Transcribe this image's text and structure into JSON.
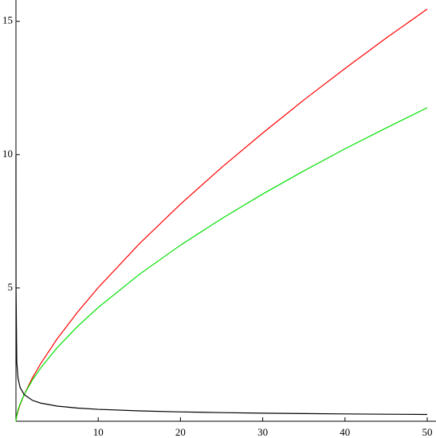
{
  "chart_data": {
    "type": "line",
    "x": [
      0,
      0.0014,
      0.01,
      0.1,
      0.25,
      0.5,
      1,
      2,
      3,
      5,
      7.5,
      10,
      15,
      20,
      25,
      30,
      35,
      40,
      45,
      50
    ],
    "series": [
      {
        "color": "#ff0000",
        "values": [
          0,
          0.01,
          0.04,
          0.2,
          0.379,
          0.616,
          1,
          1.625,
          2.158,
          3.086,
          4.097,
          5.012,
          6.657,
          8.142,
          9.518,
          10.81,
          12.05,
          13.23,
          14.37,
          15.46
        ]
      },
      {
        "color": "#00e000",
        "values": [
          0,
          0.016,
          0.055,
          0.234,
          0.418,
          0.646,
          1,
          1.548,
          1.998,
          2.756,
          3.558,
          4.266,
          5.508,
          6.604,
          7.598,
          8.523,
          9.39,
          10.22,
          11.0,
          11.76
        ]
      },
      {
        "color": "#000000",
        "values": [
          null,
          9.97,
          5.01,
          2.24,
          1.62,
          1.27,
          1,
          0.785,
          0.681,
          0.569,
          0.494,
          0.447,
          0.388,
          0.35,
          0.324,
          0.304,
          0.288,
          0.275,
          0.264,
          0.254
        ]
      }
    ],
    "xlim": [
      0,
      50
    ],
    "ylim": [
      0,
      15.8
    ],
    "xticks": [
      10,
      20,
      30,
      40,
      50
    ],
    "yticks": [
      5,
      10,
      15
    ]
  }
}
